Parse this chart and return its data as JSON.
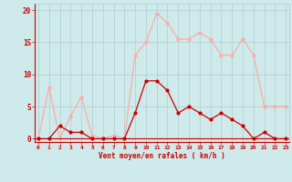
{
  "x": [
    0,
    1,
    2,
    3,
    4,
    5,
    6,
    7,
    8,
    9,
    10,
    11,
    12,
    13,
    14,
    15,
    16,
    17,
    18,
    19,
    20,
    21,
    22,
    23
  ],
  "y_mean": [
    0,
    0,
    2,
    1,
    1,
    0,
    0,
    0,
    0,
    4,
    9,
    9,
    7.5,
    4,
    5,
    4,
    3,
    4,
    3,
    2,
    0,
    1,
    0,
    0
  ],
  "y_gust": [
    0,
    8,
    0,
    3.5,
    6.5,
    0.5,
    0,
    0.5,
    0,
    13,
    15,
    19.5,
    18,
    15.5,
    15.5,
    16.5,
    15.5,
    13,
    13,
    15.5,
    13,
    5,
    5,
    5
  ],
  "color_mean": "#cc0000",
  "color_gust": "#ffaaaa",
  "bg_color": "#ceeaea",
  "grid_color": "#b0cccc",
  "xlabel": "Vent moyen/en rafales ( km/h )",
  "xlabel_color": "#cc0000",
  "ylabel_ticks": [
    0,
    5,
    10,
    15,
    20
  ],
  "xlim": [
    -0.3,
    23.3
  ],
  "ylim": [
    -0.5,
    21
  ],
  "tick_color": "#cc0000",
  "spine_color": "#cc0000",
  "marker_size": 2.0,
  "line_width": 0.9
}
